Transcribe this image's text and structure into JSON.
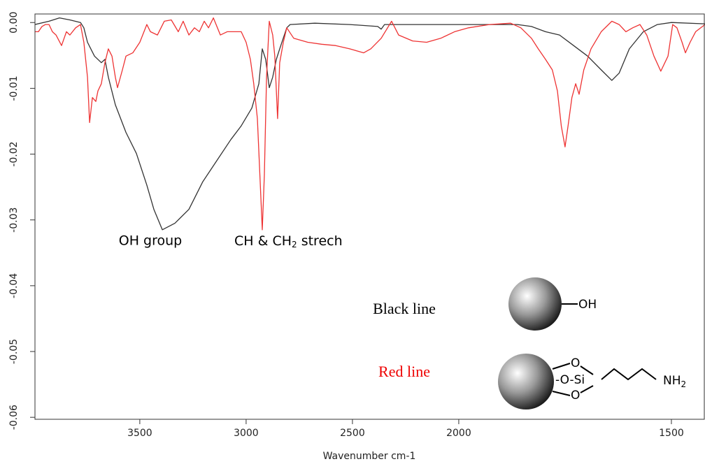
{
  "chart_data": {
    "type": "line",
    "x_label": "Wavenumber cm-1",
    "xlim": [
      3993,
      1421
    ],
    "x_scale_break": 2000,
    "x_scale_factor_below_break": 2,
    "xticks": [
      3500,
      3000,
      2500,
      2000,
      1500
    ],
    "ylim": [
      -0.0603,
      0.0013
    ],
    "yticks": [
      {
        "value": 0,
        "label": "0.00"
      },
      {
        "value": -0.01,
        "label": "-0.01"
      },
      {
        "value": -0.02,
        "label": "-0.02"
      },
      {
        "value": -0.03,
        "label": "-0.03"
      },
      {
        "value": -0.04,
        "label": "-0.04"
      },
      {
        "value": -0.05,
        "label": "-0.05"
      },
      {
        "value": -0.06,
        "label": "-0.06"
      }
    ],
    "series": [
      {
        "name": "Black line",
        "color": "#333333",
        "label_color": "#000000",
        "x": [
          3993,
          3927,
          3878,
          3829,
          3779,
          3763,
          3746,
          3713,
          3681,
          3664,
          3648,
          3615,
          3565,
          3516,
          3467,
          3434,
          3394,
          3335,
          3269,
          3204,
          3138,
          3072,
          3023,
          2973,
          2940,
          2924,
          2908,
          2891,
          2875,
          2858,
          2842,
          2809,
          2793,
          2677,
          2513,
          2381,
          2365,
          2349,
          2184,
          2020,
          1928,
          1862,
          1829,
          1796,
          1763,
          1730,
          1697,
          1665,
          1640,
          1623,
          1599,
          1566,
          1533,
          1500,
          1421
        ],
        "values": [
          -0.0003,
          0.0002,
          0.0007,
          0.0004,
          0,
          -0.0008,
          -0.003,
          -0.0051,
          -0.0061,
          -0.0056,
          -0.0083,
          -0.0125,
          -0.0167,
          -0.0199,
          -0.0247,
          -0.0284,
          -0.0315,
          -0.0305,
          -0.0284,
          -0.0242,
          -0.021,
          -0.0178,
          -0.0157,
          -0.013,
          -0.0093,
          -0.004,
          -0.0056,
          -0.0099,
          -0.0083,
          -0.0056,
          -0.004,
          -0.0008,
          -0.0003,
          -0.0001,
          -0.0003,
          -0.0006,
          -0.001,
          -0.0003,
          -0.0003,
          -0.0003,
          -0.0003,
          -0.0003,
          -0.0006,
          -0.0014,
          -0.0019,
          -0.0035,
          -0.0051,
          -0.0072,
          -0.0088,
          -0.0077,
          -0.004,
          -0.0014,
          -0.0003,
          0,
          -0.0002
        ]
      },
      {
        "name": "Red line",
        "color": "#ee3333",
        "label_color": "#ee0000",
        "x": [
          3993,
          3977,
          3960,
          3944,
          3927,
          3911,
          3894,
          3868,
          3845,
          3829,
          3802,
          3779,
          3763,
          3746,
          3736,
          3723,
          3707,
          3697,
          3681,
          3664,
          3648,
          3631,
          3615,
          3605,
          3582,
          3565,
          3533,
          3500,
          3467,
          3450,
          3417,
          3385,
          3352,
          3319,
          3296,
          3269,
          3243,
          3220,
          3197,
          3177,
          3154,
          3121,
          3089,
          3056,
          3023,
          3000,
          2980,
          2964,
          2947,
          2934,
          2924,
          2914,
          2904,
          2891,
          2875,
          2865,
          2852,
          2842,
          2825,
          2809,
          2776,
          2710,
          2645,
          2579,
          2513,
          2447,
          2414,
          2365,
          2316,
          2283,
          2217,
          2151,
          2085,
          2020,
          1977,
          1928,
          1878,
          1854,
          1829,
          1813,
          1796,
          1780,
          1768,
          1759,
          1750,
          1743,
          1734,
          1725,
          1717,
          1706,
          1689,
          1665,
          1640,
          1623,
          1607,
          1591,
          1574,
          1558,
          1541,
          1525,
          1508,
          1497,
          1487,
          1475,
          1467,
          1456,
          1443,
          1421
        ],
        "values": [
          -0.0014,
          -0.0014,
          -0.0006,
          -0.0003,
          -0.0003,
          -0.0014,
          -0.0019,
          -0.0035,
          -0.0014,
          -0.0019,
          -0.0008,
          -0.0003,
          -0.003,
          -0.0083,
          -0.0152,
          -0.0114,
          -0.012,
          -0.0104,
          -0.0093,
          -0.0061,
          -0.004,
          -0.0051,
          -0.0083,
          -0.0099,
          -0.0072,
          -0.0051,
          -0.0046,
          -0.003,
          -0.0003,
          -0.0014,
          -0.0019,
          0.0002,
          0.0004,
          -0.0014,
          0.0002,
          -0.0019,
          -0.0008,
          -0.0014,
          0.0002,
          -0.0008,
          0.0007,
          -0.0019,
          -0.0014,
          -0.0014,
          -0.0014,
          -0.003,
          -0.0056,
          -0.0093,
          -0.0146,
          -0.0242,
          -0.0315,
          -0.0231,
          -0.0083,
          0.0002,
          -0.0019,
          -0.0051,
          -0.0146,
          -0.0061,
          -0.003,
          -0.0008,
          -0.0024,
          -0.003,
          -0.0033,
          -0.0035,
          -0.004,
          -0.0046,
          -0.004,
          -0.0024,
          0.0002,
          -0.0019,
          -0.0028,
          -0.003,
          -0.0024,
          -0.0014,
          -0.0008,
          -0.0003,
          -0.0001,
          -0.0008,
          -0.0024,
          -0.004,
          -0.0056,
          -0.0072,
          -0.0104,
          -0.0157,
          -0.0189,
          -0.0157,
          -0.0114,
          -0.0093,
          -0.0109,
          -0.0072,
          -0.004,
          -0.0014,
          0.0002,
          -0.0003,
          -0.0014,
          -0.0008,
          -0.0003,
          -0.0019,
          -0.0051,
          -0.0074,
          -0.0051,
          -0.0003,
          -0.0008,
          -0.003,
          -0.0046,
          -0.003,
          -0.0014,
          -0.0003
        ]
      }
    ],
    "annotations": [
      {
        "text": "OH group"
      },
      {
        "text": "CH & CH",
        "sub": "2",
        "tail": " strech"
      }
    ],
    "structure_labels": {
      "oh": "OH",
      "o_top": "O",
      "o_mid": "-O-Si",
      "o_bot": "O",
      "amine": "NH",
      "amine_sub": "2"
    }
  }
}
